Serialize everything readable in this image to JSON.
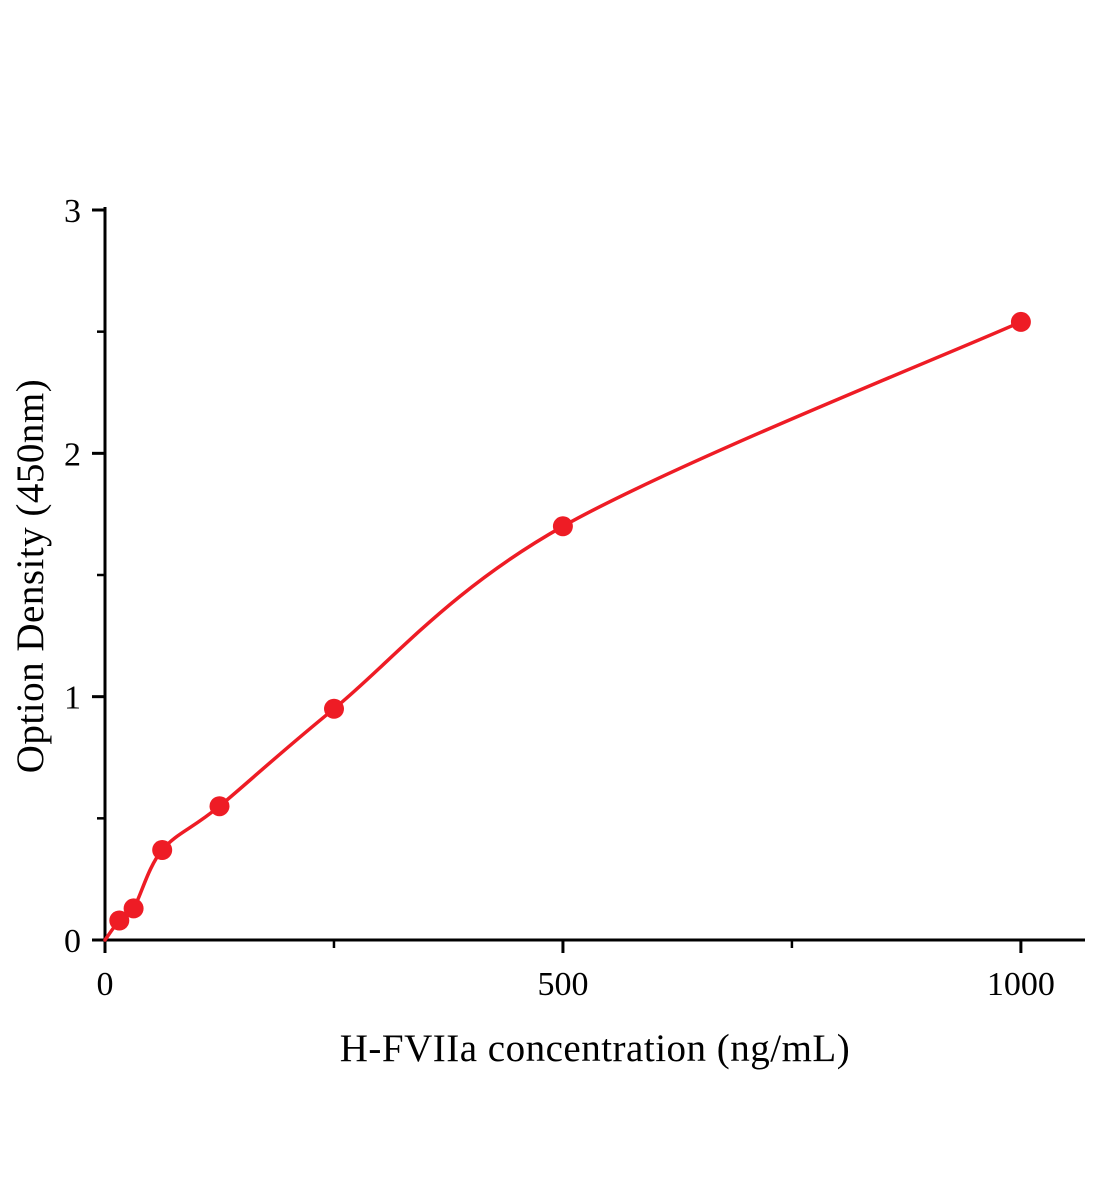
{
  "chart_data": {
    "type": "scatter",
    "title": "",
    "xlabel": "H-FVIIa concentration (ng/mL)",
    "ylabel": "Option Density (450nm)",
    "x": [
      15.6,
      31.25,
      62.5,
      125,
      250,
      500,
      1000
    ],
    "y": [
      0.08,
      0.13,
      0.37,
      0.55,
      0.95,
      1.7,
      2.54
    ],
    "curve_through_origin": true,
    "xlim": [
      0,
      1070
    ],
    "ylim": [
      0,
      3
    ],
    "x_major_ticks": [
      0,
      500,
      1000
    ],
    "x_minor_ticks": [
      250,
      750
    ],
    "y_major_ticks": [
      0,
      1,
      2,
      3
    ],
    "y_minor_ticks": [
      0.5,
      1.5,
      2.5
    ],
    "series_color": "#ee1c25",
    "axis_color": "#000000",
    "marker_radius": 10,
    "curve_width": 3.5,
    "grid": false,
    "legend": null
  }
}
